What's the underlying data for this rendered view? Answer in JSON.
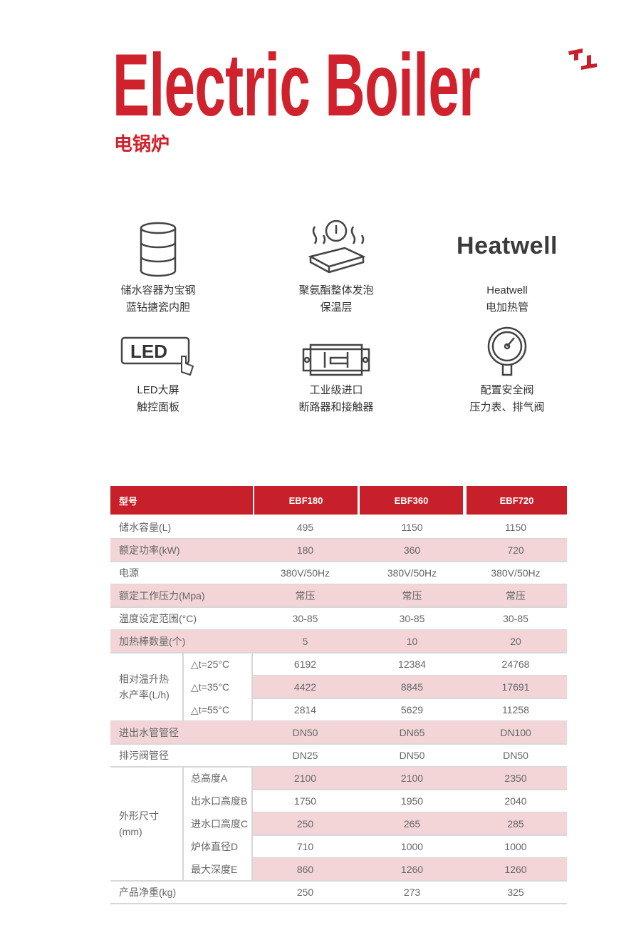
{
  "header": {
    "title": "Electric Boiler",
    "subtitle": "电锅炉"
  },
  "colors": {
    "brand_red": "#c8202a",
    "row_pink": "#f3d5d8"
  },
  "features": [
    {
      "icon": "tank-icon",
      "line1": "储水容器为宝钢",
      "line2": "蓝钻搪瓷内胆"
    },
    {
      "icon": "insulation-foam-icon",
      "line1": "聚氨酯整体发泡",
      "line2": "保温层"
    },
    {
      "icon": "heatwell-logo",
      "logo_text": "Heatwell",
      "line1": "Heatwell",
      "line2": "电加热管"
    },
    {
      "icon": "led-touch-icon",
      "logo_text": "LED",
      "line1": "LED大屏",
      "line2": "触控面板"
    },
    {
      "icon": "breaker-icon",
      "line1": "工业级进口",
      "line2": "断路器和接触器"
    },
    {
      "icon": "pressure-gauge-icon",
      "line1": "配置安全阀",
      "line2": "压力表、排气阀"
    }
  ],
  "table": {
    "header": [
      "型号",
      "EBF180",
      "EBF360",
      "EBF720"
    ],
    "rows": [
      {
        "label": "储水容量(L)",
        "values": [
          "495",
          "1150",
          "1150"
        ]
      },
      {
        "label": "额定功率(kW)",
        "values": [
          "180",
          "360",
          "720"
        ]
      },
      {
        "label": "电源",
        "values": [
          "380V/50Hz",
          "380V/50Hz",
          "380V/50Hz"
        ]
      },
      {
        "label": "额定工作压力(Mpa)",
        "values": [
          "常压",
          "常压",
          "常压"
        ]
      },
      {
        "label": "温度设定范围(°C)",
        "values": [
          "30-85",
          "30-85",
          "30-85"
        ]
      },
      {
        "label": "加热棒数量(个)",
        "values": [
          "5",
          "10",
          "20"
        ]
      }
    ],
    "flow_group": {
      "label": "相对温升热水产率(L/h)",
      "rows": [
        {
          "label": "△t=25°C",
          "values": [
            "6192",
            "12384",
            "24768"
          ]
        },
        {
          "label": "△t=35°C",
          "values": [
            "4422",
            "8845",
            "17691"
          ]
        },
        {
          "label": "△t=55°C",
          "values": [
            "2814",
            "5629",
            "11258"
          ]
        }
      ]
    },
    "rows2": [
      {
        "label": "进出水管管径",
        "values": [
          "DN50",
          "DN65",
          "DN100"
        ]
      },
      {
        "label": "排污阀管径",
        "values": [
          "DN25",
          "DN50",
          "DN50"
        ]
      }
    ],
    "dims_group": {
      "label": "外形尺寸(mm)",
      "rows": [
        {
          "label": "总高度A",
          "values": [
            "2100",
            "2100",
            "2350"
          ]
        },
        {
          "label": "出水口高度B",
          "values": [
            "1750",
            "1950",
            "2040"
          ]
        },
        {
          "label": "进水口高度C",
          "values": [
            "250",
            "265",
            "285"
          ]
        },
        {
          "label": "炉体直径D",
          "values": [
            "710",
            "1000",
            "1000"
          ]
        },
        {
          "label": "最大深度E",
          "values": [
            "860",
            "1260",
            "1260"
          ]
        }
      ]
    },
    "rows3": [
      {
        "label": "产品净重(kg)",
        "values": [
          "250",
          "273",
          "325"
        ]
      }
    ]
  }
}
